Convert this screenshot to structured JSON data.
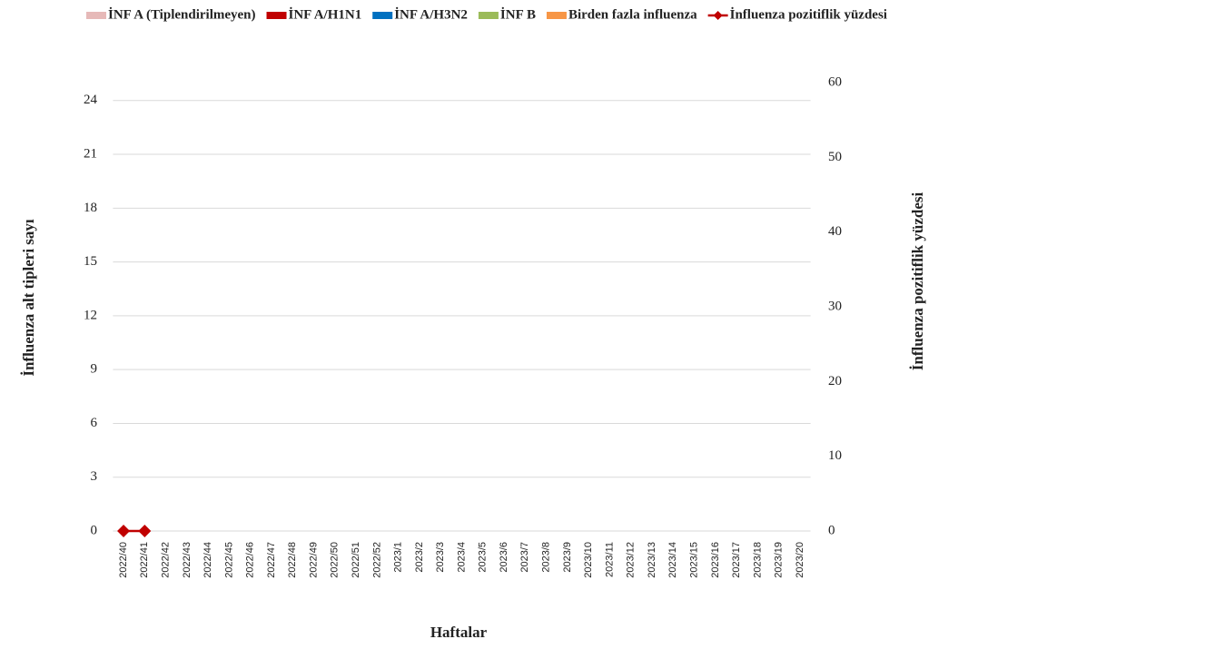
{
  "chart_data": {
    "type": "stacked-bar-line",
    "x_label": "Haftalar",
    "y_label": "İnfluenza alt tipleri sayı",
    "y2_label": "İnfluenza pozitiflik yüzdesi",
    "categories": [
      "2022/40",
      "2022/41",
      "2022/42",
      "2022/43",
      "2022/44",
      "2022/45",
      "2022/46",
      "2022/47",
      "2022/48",
      "2022/49",
      "2022/50",
      "2022/51",
      "2022/52",
      "2023/1",
      "2023/2",
      "2023/3",
      "2023/4",
      "2023/5",
      "2023/6",
      "2023/7",
      "2023/8",
      "2023/9",
      "2023/10",
      "2023/11",
      "2023/12",
      "2023/13",
      "2023/14",
      "2023/15",
      "2023/16",
      "2023/17",
      "2023/18",
      "2023/19",
      "2023/20"
    ],
    "series": [
      {
        "name": "İNF A (Tiplendirilmeyen)",
        "color": "#e6b9b8",
        "values": [
          0,
          0,
          null,
          null,
          null,
          null,
          null,
          null,
          null,
          null,
          null,
          null,
          null,
          null,
          null,
          null,
          null,
          null,
          null,
          null,
          null,
          null,
          null,
          null,
          null,
          null,
          null,
          null,
          null,
          null,
          null,
          null,
          null
        ]
      },
      {
        "name": "İNF A/H1N1",
        "color": "#c00000",
        "values": [
          0,
          0,
          null,
          null,
          null,
          null,
          null,
          null,
          null,
          null,
          null,
          null,
          null,
          null,
          null,
          null,
          null,
          null,
          null,
          null,
          null,
          null,
          null,
          null,
          null,
          null,
          null,
          null,
          null,
          null,
          null,
          null,
          null
        ]
      },
      {
        "name": "İNF A/H3N2",
        "color": "#0070c0",
        "values": [
          0,
          0,
          null,
          null,
          null,
          null,
          null,
          null,
          null,
          null,
          null,
          null,
          null,
          null,
          null,
          null,
          null,
          null,
          null,
          null,
          null,
          null,
          null,
          null,
          null,
          null,
          null,
          null,
          null,
          null,
          null,
          null,
          null
        ]
      },
      {
        "name": "İNF B",
        "color": "#9bbb59",
        "values": [
          0,
          0,
          null,
          null,
          null,
          null,
          null,
          null,
          null,
          null,
          null,
          null,
          null,
          null,
          null,
          null,
          null,
          null,
          null,
          null,
          null,
          null,
          null,
          null,
          null,
          null,
          null,
          null,
          null,
          null,
          null,
          null,
          null
        ]
      },
      {
        "name": "Birden fazla influenza",
        "color": "#f79646",
        "values": [
          0,
          0,
          null,
          null,
          null,
          null,
          null,
          null,
          null,
          null,
          null,
          null,
          null,
          null,
          null,
          null,
          null,
          null,
          null,
          null,
          null,
          null,
          null,
          null,
          null,
          null,
          null,
          null,
          null,
          null,
          null,
          null,
          null
        ]
      },
      {
        "name": "İnfluenza pozitiflik yüzdesi",
        "color": "#c00000",
        "axis": "y2",
        "kind": "line",
        "values": [
          0,
          0,
          null,
          null,
          null,
          null,
          null,
          null,
          null,
          null,
          null,
          null,
          null,
          null,
          null,
          null,
          null,
          null,
          null,
          null,
          null,
          null,
          null,
          null,
          null,
          null,
          null,
          null,
          null,
          null,
          null,
          null,
          null
        ]
      }
    ],
    "ylim": [
      0,
      25
    ],
    "yticks": [
      0,
      3,
      6,
      9,
      12,
      15,
      18,
      21,
      24
    ],
    "y2lim": [
      0,
      60
    ],
    "y2ticks": [
      0,
      10,
      20,
      30,
      40,
      50,
      60
    ],
    "grid": true,
    "legend": "top"
  }
}
